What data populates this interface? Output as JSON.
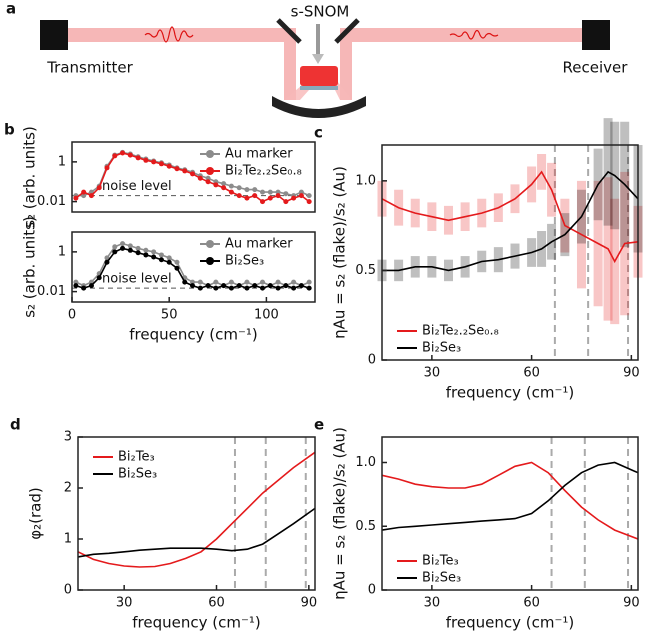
{
  "schematic": {
    "panel": "a",
    "transmitter": "Transmitter",
    "snom": "s-SNOM",
    "receiver": "Receiver"
  },
  "chart_data": [
    {
      "type": "line",
      "panel": "b",
      "yscale": "log",
      "ylabel": "s₂ (arb. units)",
      "xlim": [
        0,
        125
      ],
      "ylim": [
        0.003,
        10
      ],
      "yticks": [
        0.01,
        1
      ],
      "legend": "upper right",
      "reference_line": {
        "value": 0.02,
        "label": "noise level"
      },
      "x": [
        2,
        6,
        10,
        14,
        18,
        22,
        26,
        30,
        34,
        38,
        42,
        46,
        50,
        54,
        58,
        62,
        66,
        70,
        74,
        78,
        82,
        86,
        90,
        94,
        98,
        102,
        106,
        110,
        114,
        118,
        122
      ],
      "series": [
        {
          "name": "Au marker",
          "color": "#8c8c8c",
          "marker": true,
          "values": [
            0.02,
            0.02,
            0.03,
            0.06,
            0.6,
            2.2,
            3.0,
            2.5,
            1.8,
            1.4,
            1.1,
            0.9,
            0.7,
            0.5,
            0.4,
            0.3,
            0.2,
            0.15,
            0.1,
            0.08,
            0.06,
            0.05,
            0.04,
            0.04,
            0.03,
            0.03,
            0.03,
            0.025,
            0.02,
            0.03,
            0.02
          ]
        },
        {
          "name": "Bi₂Te₂.₂Se₀.₈",
          "color": "#e41a1c",
          "marker": true,
          "values": [
            0.015,
            0.03,
            0.02,
            0.05,
            0.5,
            2.0,
            2.8,
            2.2,
            1.6,
            1.2,
            1.0,
            0.8,
            0.6,
            0.45,
            0.35,
            0.25,
            0.15,
            0.1,
            0.07,
            0.05,
            0.03,
            0.02,
            0.015,
            0.02,
            0.01,
            0.015,
            0.02,
            0.01,
            0.015,
            0.02,
            0.01
          ]
        }
      ]
    },
    {
      "type": "line",
      "yscale": "log",
      "ylabel": "s₂ (arb. units)",
      "xlabel": "frequency (cm⁻¹)",
      "xlim": [
        0,
        125
      ],
      "ylim": [
        0.003,
        10
      ],
      "xticks": [
        0,
        50,
        100
      ],
      "yticks": [
        0.01,
        1
      ],
      "legend": "upper right",
      "reference_line": {
        "value": 0.015,
        "label": "noise level"
      },
      "x": [
        2,
        6,
        10,
        14,
        18,
        22,
        26,
        30,
        34,
        38,
        42,
        46,
        50,
        54,
        58,
        62,
        66,
        70,
        74,
        78,
        82,
        86,
        90,
        94,
        98,
        102,
        106,
        110,
        114,
        118,
        122
      ],
      "series": [
        {
          "name": "Au marker",
          "color": "#8c8c8c",
          "marker": true,
          "values": [
            0.03,
            0.02,
            0.03,
            0.08,
            0.5,
            1.8,
            2.6,
            2.0,
            1.5,
            1.2,
            1.0,
            0.7,
            0.5,
            0.3,
            0.05,
            0.03,
            0.03,
            0.02,
            0.03,
            0.02,
            0.03,
            0.02,
            0.03,
            0.02,
            0.03,
            0.02,
            0.03,
            0.02,
            0.03,
            0.02,
            0.03
          ]
        },
        {
          "name": "Bi₂Se₃",
          "color": "#000000",
          "marker": true,
          "values": [
            0.02,
            0.015,
            0.02,
            0.05,
            0.3,
            1.0,
            1.5,
            1.2,
            0.9,
            0.7,
            0.55,
            0.4,
            0.3,
            0.15,
            0.03,
            0.02,
            0.015,
            0.02,
            0.015,
            0.02,
            0.015,
            0.02,
            0.015,
            0.02,
            0.015,
            0.02,
            0.015,
            0.02,
            0.015,
            0.02,
            0.015
          ]
        }
      ]
    },
    {
      "type": "line",
      "panel": "c",
      "ylabel": "ηAu = s₂ (flake)/s₂ (Au)",
      "xlabel": "frequency (cm⁻¹)",
      "xlim": [
        15,
        92
      ],
      "ylim": [
        0,
        1.2
      ],
      "xticks": [
        30,
        60,
        90
      ],
      "yticks": [
        0,
        0.5,
        {
          "value": 1,
          "label": "1.0"
        }
      ],
      "legend": "lower left",
      "vlines": [
        67,
        77,
        89
      ],
      "x": [
        15,
        20,
        25,
        30,
        35,
        40,
        45,
        50,
        55,
        60,
        63,
        66,
        70,
        75,
        80,
        83,
        85,
        88,
        92
      ],
      "series": [
        {
          "name": "Bi₂Te₂.₂Se₀.₈",
          "color": "#e41a1c",
          "values": [
            0.9,
            0.85,
            0.82,
            0.8,
            0.78,
            0.8,
            0.82,
            0.85,
            0.9,
            0.98,
            1.05,
            0.95,
            0.75,
            0.7,
            0.65,
            0.62,
            0.55,
            0.65,
            0.66
          ],
          "errors": [
            0.1,
            0.1,
            0.08,
            0.08,
            0.08,
            0.08,
            0.08,
            0.08,
            0.08,
            0.1,
            0.1,
            0.15,
            0.15,
            0.3,
            0.35,
            0.4,
            0.35,
            0.4,
            0.2
          ]
        },
        {
          "name": "Bi₂Se₃",
          "color": "#000000",
          "values": [
            0.5,
            0.5,
            0.52,
            0.52,
            0.5,
            0.52,
            0.55,
            0.56,
            0.58,
            0.6,
            0.62,
            0.66,
            0.7,
            0.8,
            0.98,
            1.05,
            1.03,
            0.98,
            0.9
          ],
          "errors": [
            0.06,
            0.06,
            0.06,
            0.06,
            0.06,
            0.06,
            0.06,
            0.07,
            0.07,
            0.08,
            0.1,
            0.1,
            0.12,
            0.15,
            0.2,
            0.3,
            0.3,
            0.35,
            0.3
          ]
        }
      ]
    },
    {
      "type": "line",
      "panel": "d",
      "ylabel": "φ₂(rad)",
      "xlabel": "frequency (cm⁻¹)",
      "xlim": [
        15,
        92
      ],
      "ylim": [
        0,
        3
      ],
      "xticks": [
        30,
        60,
        90
      ],
      "yticks": [
        0,
        1,
        2,
        3
      ],
      "legend": "upper left",
      "vlines": [
        66,
        76,
        89
      ],
      "x": [
        15,
        20,
        25,
        30,
        35,
        40,
        45,
        50,
        55,
        60,
        65,
        70,
        75,
        80,
        85,
        92
      ],
      "series": [
        {
          "name": "Bi₂Te₃",
          "color": "#e41a1c",
          "values": [
            0.75,
            0.6,
            0.52,
            0.47,
            0.45,
            0.46,
            0.52,
            0.62,
            0.75,
            1.0,
            1.3,
            1.6,
            1.9,
            2.15,
            2.4,
            2.7
          ]
        },
        {
          "name": "Bi₂Se₃",
          "color": "#000000",
          "values": [
            0.65,
            0.7,
            0.72,
            0.75,
            0.78,
            0.8,
            0.82,
            0.82,
            0.82,
            0.8,
            0.77,
            0.8,
            0.9,
            1.1,
            1.3,
            1.6
          ]
        }
      ]
    },
    {
      "type": "line",
      "panel": "e",
      "ylabel": "ηAu = s₂ (flake)/s₂ (Au)",
      "xlabel": "frequency (cm⁻¹)",
      "xlim": [
        15,
        92
      ],
      "ylim": [
        0,
        1.2
      ],
      "xticks": [
        30,
        60,
        90
      ],
      "yticks": [
        0,
        0.5,
        {
          "value": 1,
          "label": "1.0"
        }
      ],
      "legend": "lower left",
      "vlines": [
        66,
        76,
        89
      ],
      "x": [
        15,
        20,
        25,
        30,
        35,
        40,
        45,
        50,
        55,
        60,
        65,
        70,
        75,
        80,
        85,
        92
      ],
      "series": [
        {
          "name": "Bi₂Te₃",
          "color": "#e41a1c",
          "values": [
            0.9,
            0.87,
            0.83,
            0.81,
            0.8,
            0.8,
            0.83,
            0.9,
            0.97,
            1.0,
            0.92,
            0.78,
            0.65,
            0.55,
            0.47,
            0.4
          ]
        },
        {
          "name": "Bi₂Se₃",
          "color": "#000000",
          "values": [
            0.47,
            0.49,
            0.5,
            0.51,
            0.52,
            0.53,
            0.54,
            0.55,
            0.56,
            0.6,
            0.7,
            0.82,
            0.92,
            0.98,
            1.0,
            0.92
          ]
        }
      ]
    }
  ]
}
